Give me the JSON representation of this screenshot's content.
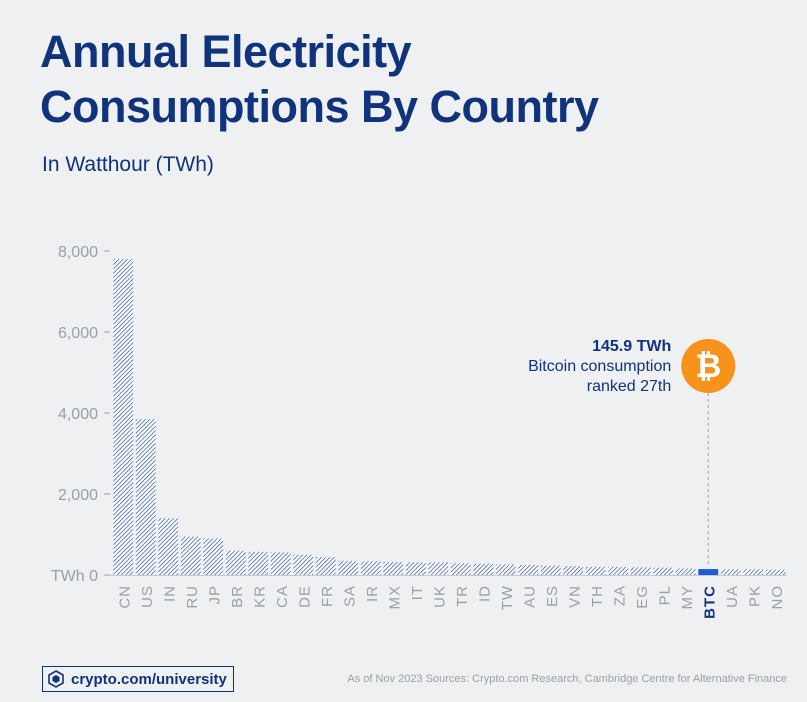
{
  "header": {
    "title_line1": "Annual Electricity",
    "title_line2": "Consumptions By Country",
    "subtitle": "In Watthour (TWh)"
  },
  "annotation": {
    "value": "145.9 TWh",
    "line1": "Bitcoin consumption",
    "line2": "ranked 27th",
    "icon": "bitcoin-icon",
    "icon_glyph": "₿",
    "icon_color": "#f7931a"
  },
  "footer": {
    "brand_icon": "crypto-com-logo-icon",
    "brand": "crypto.com/university",
    "source": "As of Nov 2023 Sources: Crypto.com Research, Cambridge Centre for Alternative Finance"
  },
  "colors": {
    "title": "#10337b",
    "bar_hatch": "#2a4f9c",
    "bar_fill": "#ffffff",
    "highlight": "#1e5bd8",
    "axis_text": "#9aa0a8"
  },
  "chart_data": {
    "type": "bar",
    "categories": [
      "CN",
      "US",
      "IN",
      "RU",
      "JP",
      "BR",
      "KR",
      "CA",
      "DE",
      "FR",
      "SA",
      "IR",
      "MX",
      "IT",
      "UK",
      "TR",
      "ID",
      "TW",
      "AU",
      "ES",
      "VN",
      "TH",
      "ZA",
      "EG",
      "PL",
      "MY",
      "BTC",
      "UA",
      "PK",
      "NO"
    ],
    "values": [
      7800,
      3850,
      1400,
      950,
      900,
      600,
      570,
      560,
      500,
      440,
      350,
      340,
      320,
      310,
      310,
      290,
      280,
      260,
      250,
      230,
      220,
      200,
      200,
      190,
      180,
      160,
      145.9,
      140,
      140,
      130
    ],
    "highlight": "BTC",
    "ylim": [
      0,
      8000
    ],
    "yticks": [
      0,
      2000,
      4000,
      6000,
      8000
    ],
    "ytick_labels": [
      "TWh 0",
      "2,000",
      "4,000",
      "6,000",
      "8,000"
    ],
    "grid": false
  }
}
